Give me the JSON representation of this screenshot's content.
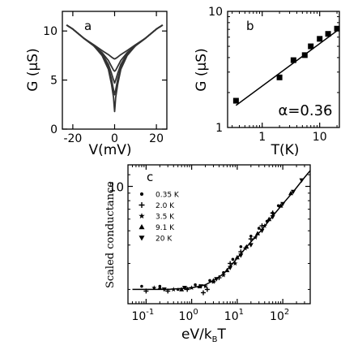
{
  "chart_data": [
    {
      "panel": "a",
      "type": "line",
      "panel_label": "a",
      "xlabel": "V(mV)",
      "ylabel": "G (µS)",
      "xlim": [
        -25,
        25
      ],
      "ylim": [
        0,
        12
      ],
      "xticks": [
        -20,
        0,
        20
      ],
      "yticks": [
        0,
        5,
        10
      ],
      "grid": false,
      "series": [
        {
          "x": [
            -23,
            -20,
            -15,
            -10,
            -6,
            -3,
            -1.5,
            -0.5,
            0,
            0.5,
            1.5,
            3,
            6,
            10,
            15,
            20,
            23
          ],
          "values": [
            10.6,
            10.2,
            9.3,
            8.6,
            8.0,
            7.6,
            7.35,
            7.2,
            7.15,
            7.2,
            7.35,
            7.6,
            8.0,
            8.6,
            9.3,
            10.2,
            10.6
          ]
        },
        {
          "x": [
            -23,
            -20,
            -15,
            -10,
            -6,
            -3,
            -1.5,
            -0.5,
            0,
            0.5,
            1.5,
            3,
            6,
            10,
            15,
            20,
            23
          ],
          "values": [
            10.6,
            10.2,
            9.3,
            8.5,
            7.8,
            7.0,
            6.4,
            6.0,
            5.9,
            6.0,
            6.4,
            7.0,
            7.8,
            8.5,
            9.3,
            10.2,
            10.6
          ]
        },
        {
          "x": [
            -23,
            -20,
            -15,
            -10,
            -6,
            -3,
            -1.5,
            -0.5,
            0,
            0.5,
            1.5,
            3,
            6,
            10,
            15,
            20,
            23
          ],
          "values": [
            10.6,
            10.2,
            9.3,
            8.5,
            7.7,
            6.6,
            5.7,
            5.0,
            4.7,
            5.0,
            5.7,
            6.6,
            7.7,
            8.5,
            9.3,
            10.2,
            10.6
          ]
        },
        {
          "x": [
            -23,
            -20,
            -15,
            -10,
            -6,
            -3,
            -1.5,
            -0.5,
            0,
            0.5,
            1.5,
            3,
            6,
            10,
            15,
            20,
            23
          ],
          "values": [
            10.6,
            10.2,
            9.3,
            8.5,
            7.6,
            6.3,
            5.1,
            4.0,
            3.5,
            4.0,
            5.1,
            6.3,
            7.6,
            8.5,
            9.3,
            10.2,
            10.6
          ]
        },
        {
          "x": [
            -23,
            -20,
            -15,
            -10,
            -6,
            -3,
            -1.5,
            -0.5,
            -0.2,
            0,
            0.2,
            0.5,
            1.5,
            3,
            6,
            10,
            15,
            20,
            23
          ],
          "values": [
            10.6,
            10.2,
            9.3,
            8.5,
            7.5,
            6.1,
            4.6,
            3.2,
            2.3,
            1.8,
            2.3,
            3.2,
            4.6,
            6.1,
            7.5,
            8.5,
            9.3,
            10.2,
            10.6
          ]
        }
      ]
    },
    {
      "panel": "b",
      "type": "scatter",
      "panel_label": "b",
      "xlabel": "T(K)",
      "ylabel": "G (µS)",
      "xscale": "log",
      "yscale": "log",
      "xlim": [
        0.25,
        22
      ],
      "ylim": [
        1,
        10
      ],
      "xticks": [
        1,
        10
      ],
      "yticks": [
        1,
        10
      ],
      "annotation": "α=0.36",
      "points": {
        "x": [
          0.35,
          2.0,
          3.5,
          5.5,
          7.0,
          10.0,
          14.0,
          20.0
        ],
        "values": [
          1.7,
          2.7,
          3.8,
          4.2,
          5.0,
          5.8,
          6.4,
          7.1
        ]
      },
      "fit_line": {
        "x": [
          0.35,
          20.0
        ],
        "values": [
          1.55,
          6.8
        ]
      }
    },
    {
      "panel": "c",
      "type": "scatter",
      "panel_label": "c",
      "xlabel": "eV/k",
      "xlabel_sub": "B",
      "xlabel_tail": "T",
      "ylabel": "Scaled conductance",
      "xscale": "log",
      "yscale": "log",
      "xlim": [
        0.04,
        400
      ],
      "ylim": [
        1.6,
        14
      ],
      "xtick_bases": [
        "10",
        "10",
        "10",
        "10"
      ],
      "xtick_exps": [
        "-1",
        "0",
        "1",
        "2"
      ],
      "xtick_values": [
        0.1,
        1,
        10,
        100
      ],
      "ytick_label": "10",
      "ytick_value": 10,
      "legend": [
        "0.35 K",
        "2.0 K",
        "3.5 K",
        "9.1 K",
        "20  K"
      ],
      "legend_position": "top-left",
      "series": [
        {
          "name": "0.35 K",
          "marker": "circle",
          "x": [
            0.08,
            0.2,
            0.5,
            1.2,
            2.5,
            5,
            8,
            12,
            20,
            30,
            45,
            60,
            80
          ],
          "values": [
            2.1,
            2.1,
            2.0,
            2.15,
            2.3,
            2.6,
            3.2,
            3.9,
            4.6,
            5.2,
            5.8,
            6.6,
            7.4
          ]
        },
        {
          "name": "2.0 K",
          "marker": "plus",
          "x": [
            0.1,
            0.3,
            0.8,
            1.8,
            2.2,
            4,
            7,
            12,
            20,
            35,
            60
          ],
          "values": [
            1.95,
            1.95,
            2.0,
            1.9,
            2.0,
            2.4,
            3.0,
            3.6,
            4.4,
            5.4,
            6.6
          ]
        },
        {
          "name": "3.5 K",
          "marker": "star",
          "x": [
            0.15,
            0.4,
            1.0,
            2.0,
            3,
            5,
            9,
            15,
            25,
            40
          ],
          "values": [
            2.05,
            2.0,
            2.05,
            2.1,
            2.25,
            2.5,
            3.0,
            3.8,
            4.5,
            5.4
          ]
        },
        {
          "name": "9.1 K",
          "marker": "triangle-up",
          "x": [
            0.2,
            0.6,
            1.5,
            3,
            6,
            10,
            16,
            28,
            50,
            90,
            150
          ],
          "values": [
            2.05,
            2.0,
            2.1,
            2.3,
            2.7,
            3.3,
            3.9,
            4.8,
            6.0,
            7.4,
            9.0
          ]
        },
        {
          "name": "20  K",
          "marker": "triangle-down",
          "x": [
            0.25,
            0.7,
            1.6,
            3.5,
            7,
            12,
            20,
            35,
            60,
            100,
            170,
            260
          ],
          "values": [
            2.0,
            2.05,
            2.1,
            2.35,
            2.8,
            3.4,
            4.0,
            5.0,
            6.2,
            7.6,
            9.2,
            11.0
          ]
        }
      ],
      "fit_line": {
        "x": [
          0.05,
          0.3,
          1,
          2,
          3,
          5,
          8,
          13,
          20,
          35,
          60,
          100,
          180,
          300,
          400
        ],
        "values": [
          2.0,
          2.0,
          2.05,
          2.15,
          2.3,
          2.55,
          3.0,
          3.6,
          4.2,
          5.1,
          6.3,
          7.6,
          9.4,
          11.5,
          12.8
        ]
      }
    }
  ]
}
